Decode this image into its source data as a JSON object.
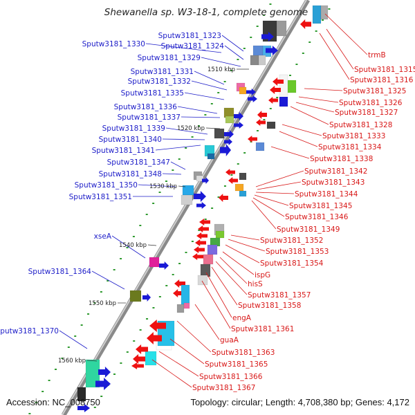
{
  "title": "Shewanella sp. W3-18-1, complete genome",
  "accession": "Accession: NC_008750",
  "topology": "Topology: circular; Length: 4,708,380 bp; Genes: 4,172",
  "colors": {
    "left_label": "#1c1cc8",
    "right_label": "#d81818",
    "backbone": "#8a8a8a",
    "tick": "#2f9a2f"
  },
  "kbp_markers": [
    "1510 kbp",
    "1520 kbp",
    "1530 kbp",
    "1540 kbp",
    "1550 kbp",
    "1560 kbp"
  ],
  "left_labels": [
    "Sputw3181_1323",
    "Sputw3181_1324",
    "Sputw3181_1330",
    "Sputw3181_1329",
    "Sputw3181_1331",
    "Sputw3181_1332",
    "Sputw3181_1335",
    "Sputw3181_1336",
    "Sputw3181_1337",
    "Sputw3181_1339",
    "Sputw3181_1340",
    "Sputw3181_1341",
    "Sputw3181_1347",
    "Sputw3181_1348",
    "Sputw3181_1350",
    "Sputw3181_1351",
    "xseA",
    "Sputw3181_1364",
    "Sputw3181_1370"
  ],
  "right_labels": [
    "trmB",
    "Sputw3181_1315",
    "Sputw3181_1316",
    "Sputw3181_1325",
    "Sputw3181_1326",
    "Sputw3181_1327",
    "Sputw3181_1328",
    "Sputw3181_1333",
    "Sputw3181_1334",
    "Sputw3181_1338",
    "Sputw3181_1342",
    "Sputw3181_1343",
    "Sputw3181_1344",
    "Sputw3181_1345",
    "Sputw3181_1346",
    "Sputw3181_1349",
    "Sputw3181_1352",
    "Sputw3181_1353",
    "Sputw3181_1354",
    "ispG",
    "hisS",
    "Sputw3181_1357",
    "Sputw3181_1358",
    "engA",
    "Sputw3181_1361",
    "guaA",
    "Sputw3181_1363",
    "Sputw3181_1365",
    "Sputw3181_1366",
    "Sputw3181_1367"
  ]
}
